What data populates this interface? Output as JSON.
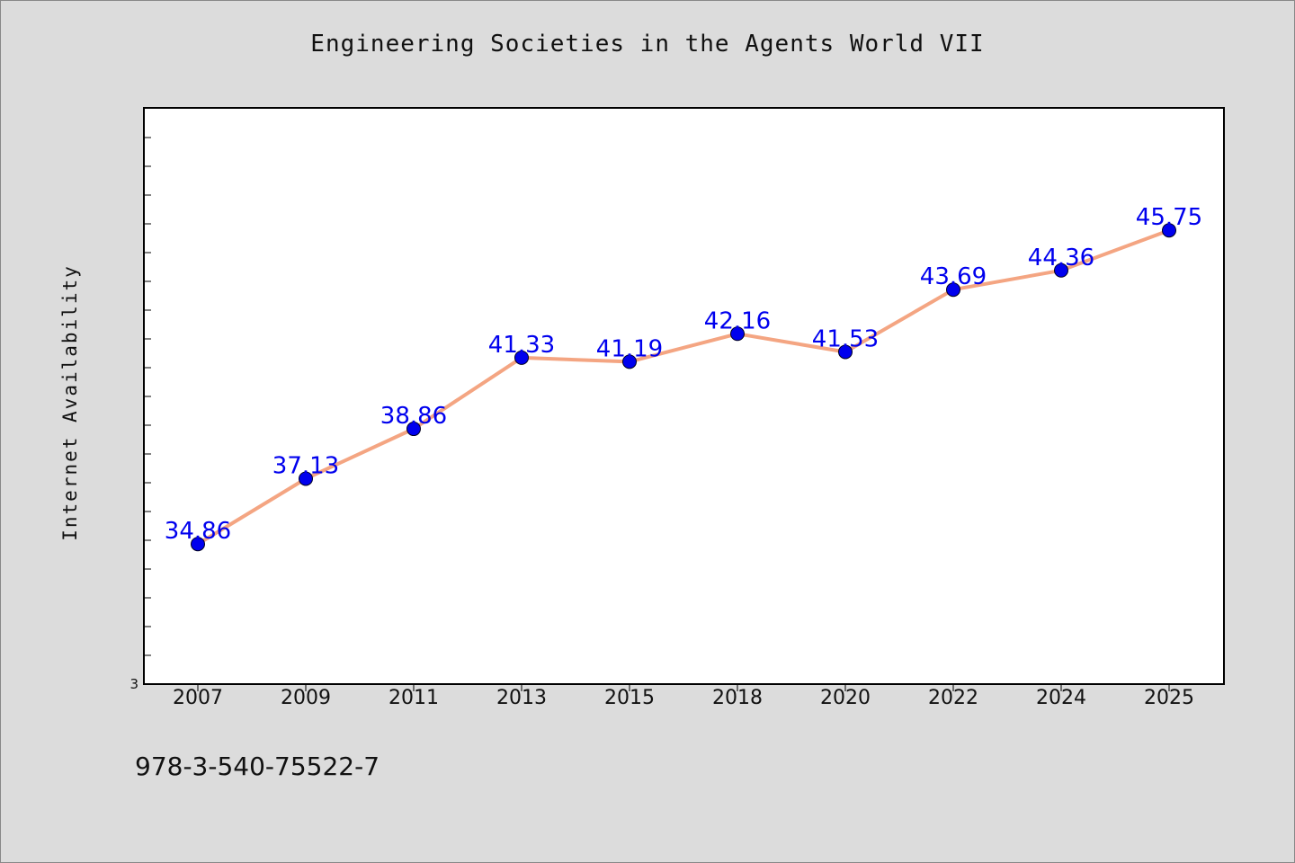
{
  "chart_data": {
    "type": "line",
    "title": "Engineering Societies in the Agents World VII",
    "ylabel": "Internet Availability",
    "xlabel": "",
    "categories": [
      "2007",
      "2009",
      "2011",
      "2013",
      "2015",
      "2018",
      "2020",
      "2022",
      "2024",
      "2025"
    ],
    "series": [
      {
        "values": [
          34.86,
          37.13,
          38.86,
          41.33,
          41.19,
          42.16,
          41.53,
          43.69,
          44.36,
          45.75
        ]
      }
    ],
    "y_tick_labels": [
      "3"
    ],
    "ylim": [
      30,
      50
    ],
    "grid": false,
    "legend": "none",
    "line_color": "#f4a582",
    "marker_color": "#0000ee",
    "label_color": "#0000ee"
  },
  "footer": {
    "isbn": "978-3-540-75522-7"
  }
}
